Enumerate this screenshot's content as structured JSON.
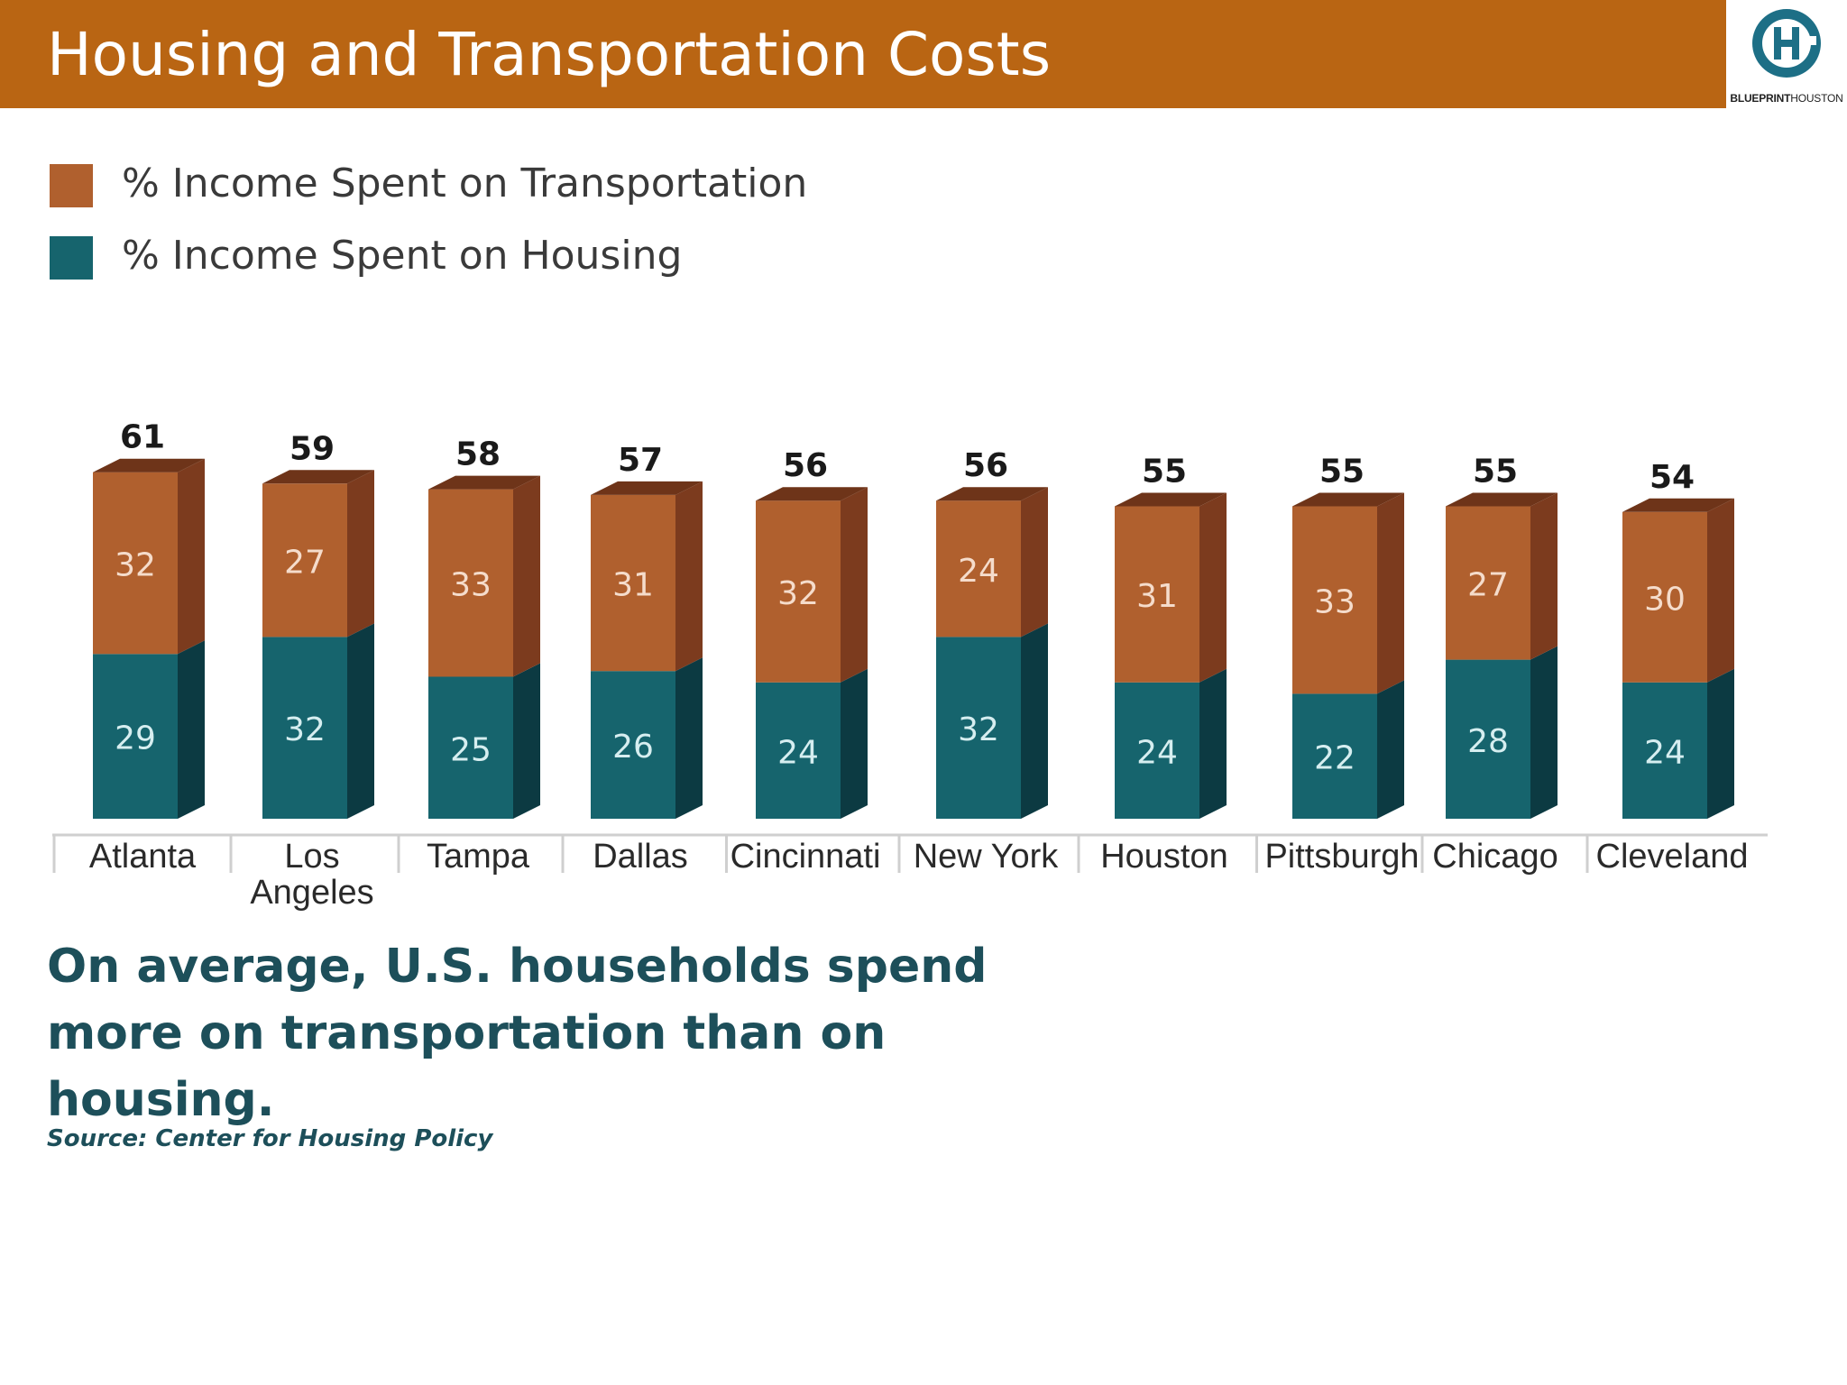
{
  "header": {
    "title": "Housing and Transportation Costs",
    "logo_text_bold": "BLUEPRINT",
    "logo_text_regular": "HOUSTON"
  },
  "colors": {
    "header_bg": "#b96513",
    "transportation": "#b0602e",
    "housing": "#16646d",
    "text_dark_teal": "#1d4f5a"
  },
  "chart_data": {
    "type": "bar",
    "stacked": true,
    "categories": [
      "Atlanta",
      "Los Angeles",
      "Tampa",
      "Dallas",
      "Cincinnati",
      "New York",
      "Houston",
      "Pittsburgh",
      "Chicago",
      "Cleveland"
    ],
    "series": [
      {
        "name": "% Income Spent on Housing",
        "values": [
          29,
          32,
          25,
          26,
          24,
          32,
          24,
          22,
          28,
          24
        ]
      },
      {
        "name": "% Income Spent on Transportation",
        "values": [
          32,
          27,
          33,
          31,
          32,
          24,
          31,
          33,
          27,
          30
        ]
      }
    ],
    "totals": [
      61,
      59,
      58,
      57,
      56,
      56,
      55,
      55,
      55,
      54
    ],
    "legend": [
      {
        "label": "% Income Spent on Transportation",
        "color": "#b0602e"
      },
      {
        "label": "% Income Spent on Housing",
        "color": "#16646d"
      }
    ],
    "legend_position": "top-left",
    "grid": false
  },
  "takeaway": "On average, U.S. households spend more on transportation than on housing.",
  "source": "Source: Center for Housing Policy"
}
